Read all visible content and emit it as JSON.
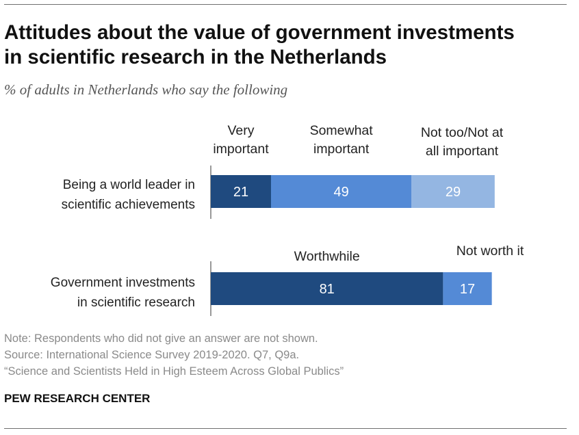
{
  "header": {
    "title_line1": "Attitudes about the value of government investments",
    "title_line2": "in scientific research in the Netherlands",
    "subtitle": "% of adults in Netherlands who say the following"
  },
  "chart_data": {
    "type": "bar",
    "orientation": "horizontal-stacked",
    "groups": [
      {
        "label_lines": [
          "Being a world leader in",
          "scientific achievements"
        ],
        "segments": [
          {
            "label_lines": [
              "Very",
              "important"
            ],
            "value": 21,
            "color": "#1f4a7f"
          },
          {
            "label_lines": [
              "Somewhat",
              "important"
            ],
            "value": 49,
            "color": "#548ad6"
          },
          {
            "label_lines": [
              "Not too/Not at",
              "all important"
            ],
            "value": 29,
            "color": "#94b6e2"
          }
        ]
      },
      {
        "label_lines": [
          "Government investments",
          "in scientific research"
        ],
        "segments": [
          {
            "label_lines": [
              "Worthwhile"
            ],
            "value": 81,
            "color": "#1f4a7f"
          },
          {
            "label_lines": [
              "Not worth it"
            ],
            "value": 17,
            "color": "#548ad6"
          }
        ]
      }
    ],
    "xlim": [
      0,
      100
    ],
    "axis_color": "#555555",
    "value_label_color": "#ffffff"
  },
  "footer": {
    "note": "Note: Respondents who did not give an answer are not shown.",
    "source": "Source: International Science Survey 2019-2020. Q7, Q9a.",
    "report": "“Science and Scientists Held in High Esteem Across Global Publics”",
    "brand": "PEW RESEARCH CENTER"
  }
}
